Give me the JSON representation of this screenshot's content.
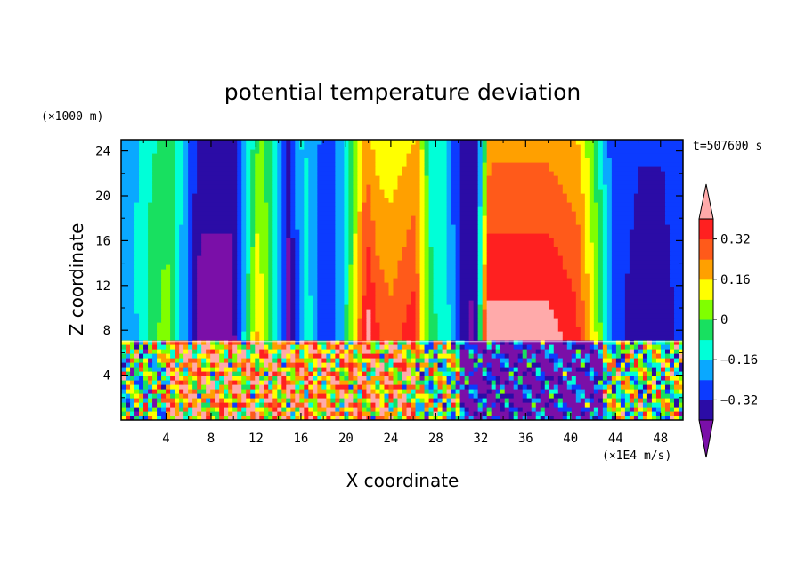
{
  "chart_data": {
    "type": "heatmap",
    "title": "potential temperature deviation",
    "xlabel": "X coordinate",
    "ylabel": "Z coordinate",
    "x_unit": "(×1E4 m/s)",
    "y_unit": "(×1000 m)",
    "time_label": "t=507600 s",
    "xlim": [
      0,
      50
    ],
    "ylim": [
      0,
      25
    ],
    "xticks": [
      4,
      8,
      12,
      16,
      20,
      24,
      28,
      32,
      36,
      40,
      44,
      48
    ],
    "yticks": [
      4,
      8,
      12,
      16,
      20,
      24
    ],
    "inversion_height": 7,
    "colorbar": {
      "levels": [
        -0.4,
        -0.32,
        -0.24,
        -0.16,
        -0.08,
        0,
        0.08,
        0.16,
        0.24,
        0.32,
        0.4
      ],
      "labels": [
        "0.32",
        "0.16",
        "0",
        "−0.16",
        "−0.32"
      ],
      "label_values": [
        0.32,
        0.16,
        0,
        -0.16,
        -0.32
      ],
      "colors": [
        "#7a0fa8",
        "#2b0ca6",
        "#0c3bff",
        "#0aa8ff",
        "#00ffd8",
        "#18e060",
        "#80ff00",
        "#ffff00",
        "#ffa000",
        "#ff5a1a",
        "#ff2020",
        "#ffaaaa"
      ]
    },
    "upper_profile": {
      "description": "Upper layer (z from 7 to 25): value along x at reference height, with columns narrowing with height",
      "x": [
        0,
        1,
        2.5,
        4,
        5.5,
        7,
        10,
        12,
        13.5,
        15,
        16.5,
        18,
        19.5,
        21,
        22,
        23,
        24,
        26,
        27.5,
        29,
        30.5,
        31.5,
        32.5,
        35,
        38,
        40.5,
        41.5,
        42.5,
        44,
        46,
        48,
        50
      ],
      "value": [
        -0.2,
        -0.2,
        -0.05,
        0.05,
        -0.2,
        -0.44,
        -0.44,
        0.18,
        -0.05,
        -0.44,
        -0.1,
        -0.3,
        -0.2,
        0.2,
        0.45,
        0.32,
        0.28,
        0.38,
        -0.05,
        -0.12,
        -0.36,
        -0.44,
        0.45,
        0.45,
        0.45,
        0.36,
        0.2,
        0.05,
        -0.3,
        -0.36,
        -0.36,
        -0.3
      ]
    },
    "lower_layer": {
      "description": "Turbulent boundary layer (z from 0 to 7), mostly positive on left, negative between x=30 and x=43"
    }
  }
}
